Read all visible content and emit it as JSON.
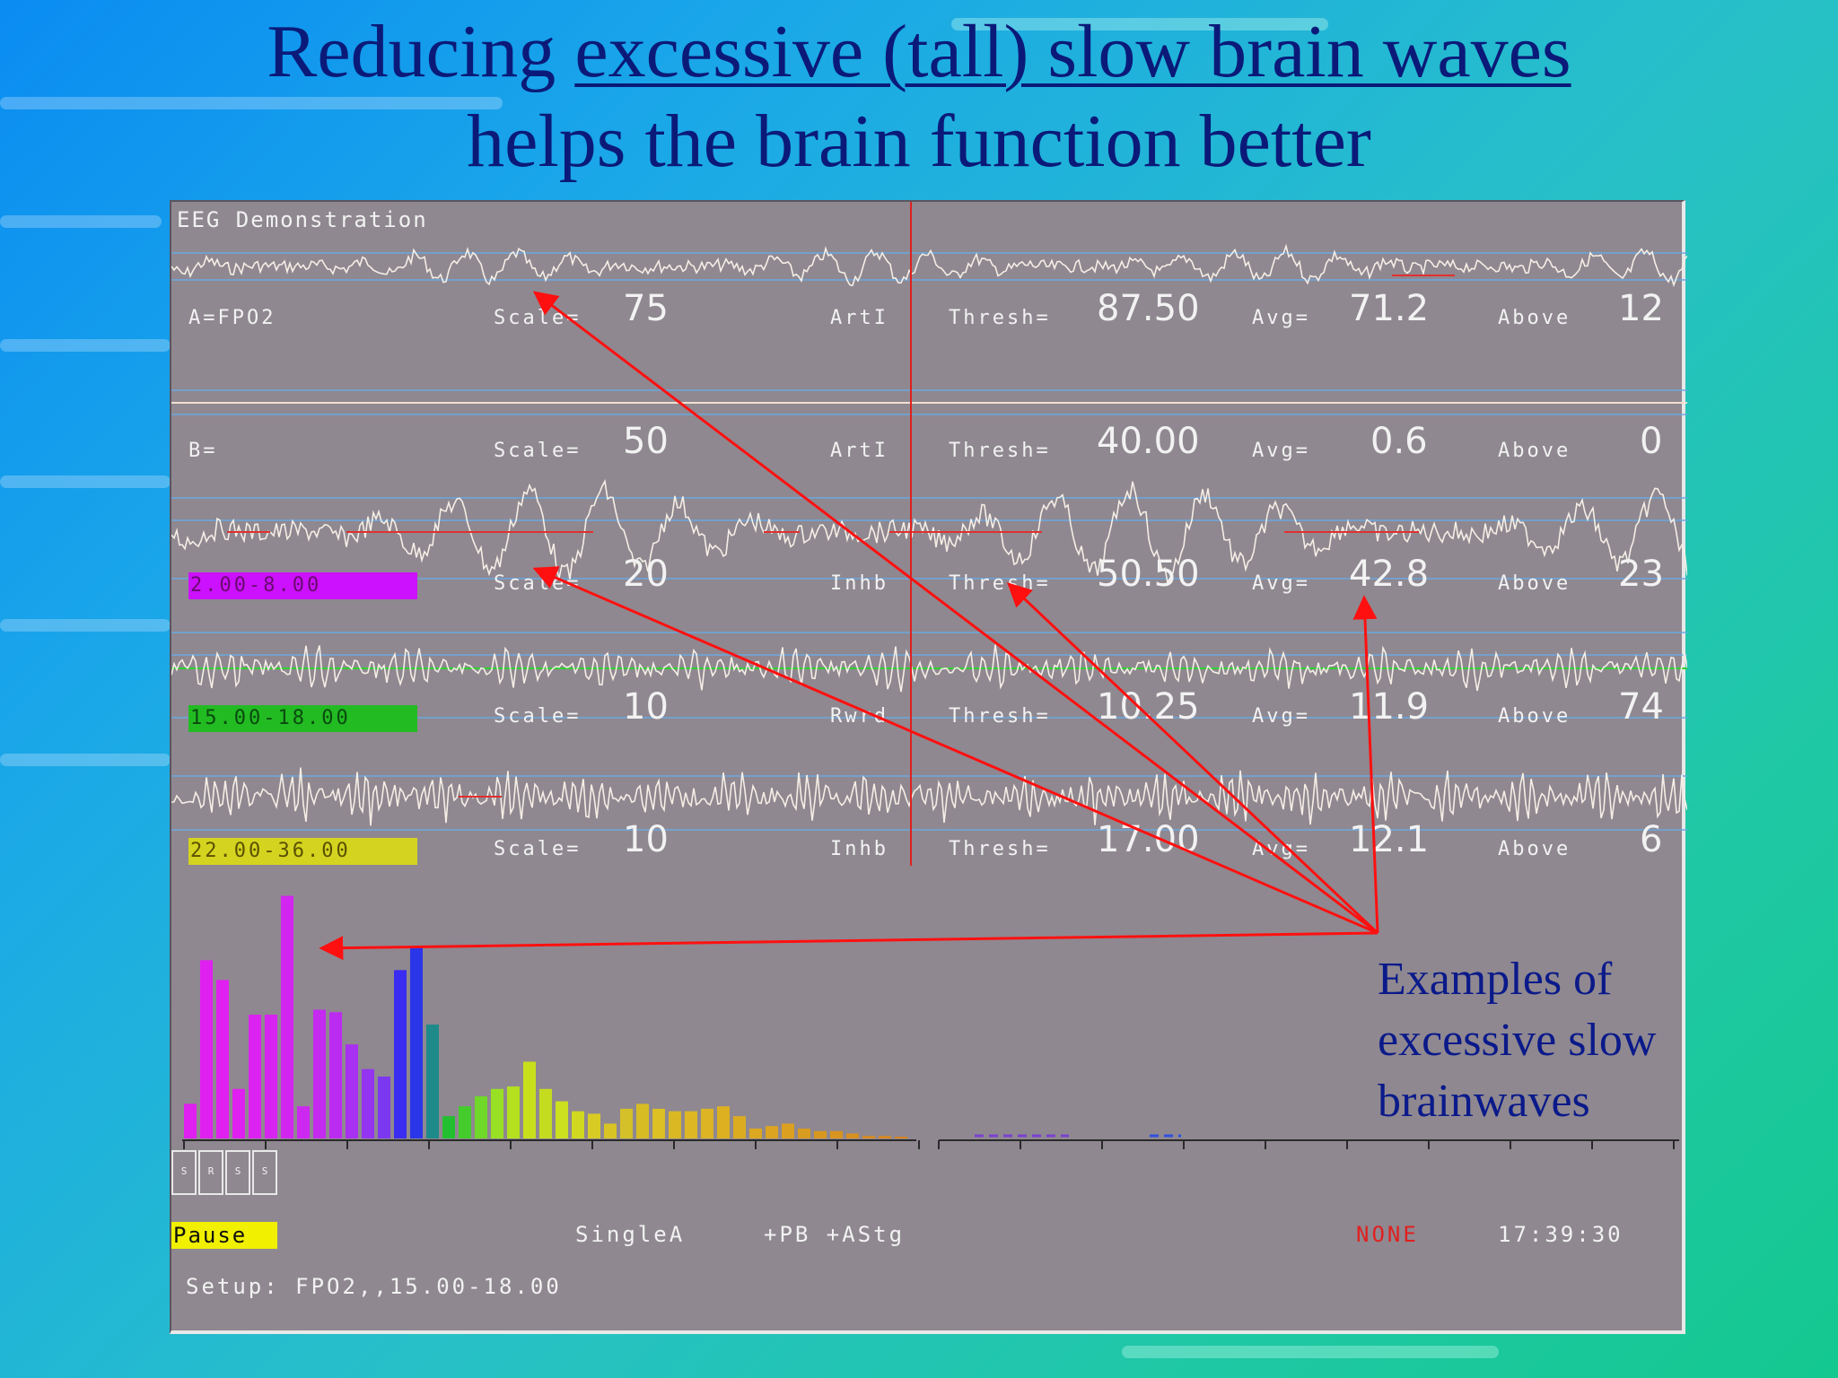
{
  "slide": {
    "title_prefix": "Reducing ",
    "title_underlined": "excessive (tall) slow brain waves",
    "title_line2": "helps the brain function better",
    "annotation": [
      "Examples of",
      "excessive slow",
      "brainwaves"
    ]
  },
  "window": {
    "title": "EEG Demonstration",
    "channels": [
      {
        "name": "A=FPO2",
        "band": "",
        "scale_label": "Scale=",
        "scale": "75",
        "mode": "ArtI",
        "thresh_label": "Thresh=",
        "thresh": "87.50",
        "avg_label": "Avg=",
        "avg": "71.2",
        "above_label": "Above",
        "above": "12"
      },
      {
        "name": "B=",
        "band": "",
        "scale_label": "Scale=",
        "scale": "50",
        "mode": "ArtI",
        "thresh_label": "Thresh=",
        "thresh": "40.00",
        "avg_label": "Avg=",
        "avg": "0.6",
        "above_label": "Above",
        "above": "0"
      },
      {
        "name": "",
        "band": "2.00-8.00",
        "band_color": "#cc11ff",
        "scale_label": "Scale=",
        "scale": "20",
        "mode": "Inhb",
        "thresh_label": "Thresh=",
        "thresh": "50.50",
        "avg_label": "Avg=",
        "avg": "42.8",
        "above_label": "Above",
        "above": "23"
      },
      {
        "name": "",
        "band": "15.00-18.00",
        "band_color": "#22bb22",
        "scale_label": "Scale=",
        "scale": "10",
        "mode": "Rwrd",
        "thresh_label": "Thresh=",
        "thresh": "10.25",
        "avg_label": "Avg=",
        "avg": "11.9",
        "above_label": "Above",
        "above": "74"
      },
      {
        "name": "",
        "band": "22.00-36.00",
        "band_color": "#d4d420",
        "scale_label": "Scale=",
        "scale": "10",
        "mode": "Inhb",
        "thresh_label": "Thresh=",
        "thresh": "17.00",
        "avg_label": "Avg=",
        "avg": "12.1",
        "above_label": "Above",
        "above": "6"
      }
    ],
    "stat_buttons": [
      "S",
      "R",
      "S",
      "S"
    ],
    "pause_label": "Pause",
    "mode_label": "SingleA",
    "options_label": "+PB +AStg",
    "status_none": "NONE",
    "time": "17:39:30",
    "setup_label": "Setup: FPO2,,15.00-18.00"
  },
  "spectrum": {
    "values": [
      0.14,
      0.72,
      0.64,
      0.2,
      0.5,
      0.5,
      0.98,
      0.13,
      0.52,
      0.51,
      0.38,
      0.28,
      0.25,
      0.68,
      0.77,
      0.46,
      0.09,
      0.13,
      0.17,
      0.2,
      0.21,
      0.31,
      0.2,
      0.15,
      0.11,
      0.1,
      0.06,
      0.12,
      0.14,
      0.12,
      0.11,
      0.11,
      0.12,
      0.13,
      0.09,
      0.04,
      0.05,
      0.06,
      0.04,
      0.03,
      0.03,
      0.02,
      0.01,
      0.01,
      0.005
    ],
    "colors": [
      "#e020f0",
      "#e020f0",
      "#e020f0",
      "#e020f0",
      "#dc22f0",
      "#d824f0",
      "#d226f0",
      "#cc28f0",
      "#c42af0",
      "#bc2cf0",
      "#a830f0",
      "#9434f0",
      "#7c38f0",
      "#3a2cf0",
      "#2a36e8",
      "#1e8a8a",
      "#22c030",
      "#44cc2c",
      "#70d828",
      "#98e024",
      "#b4e020",
      "#c8e01c",
      "#c4dc20",
      "#cce020",
      "#d0d820",
      "#d8cc24",
      "#d8c424",
      "#d4c028",
      "#d8bc24",
      "#dcc024",
      "#dab824",
      "#ddb824",
      "#ddb424",
      "#dcb020",
      "#dcac20",
      "#dca820",
      "#dca420",
      "#dca020",
      "#d89c20",
      "#d89820",
      "#d89420",
      "#d89020",
      "#d88c20",
      "#d88820",
      "#d88420"
    ]
  },
  "colors": {
    "title": "#0b1a78",
    "arrow": "#ff1010",
    "panel": "#8f8890"
  }
}
